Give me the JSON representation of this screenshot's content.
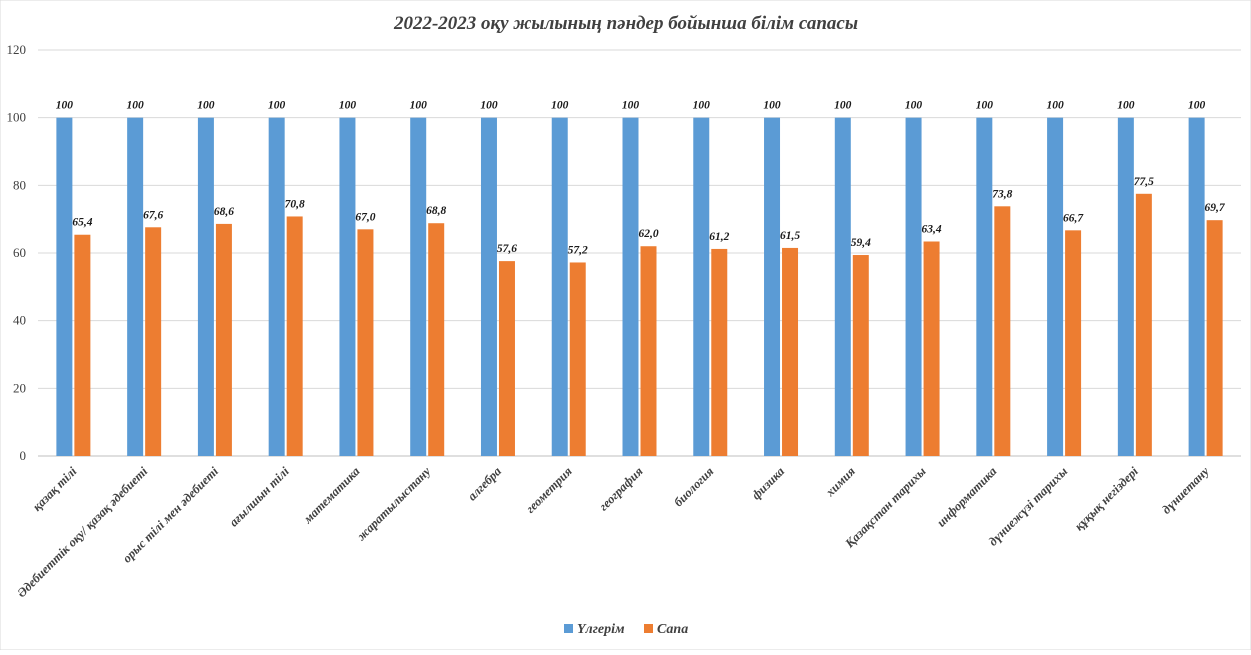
{
  "chart_data": {
    "type": "bar",
    "title": "2022-2023 оқу жылының пәндер бойынша білім сапасы",
    "categories": [
      "қазақ тілі",
      "Әдебиеттік оқу/ қазақ әдебиеті",
      "орыс тілі мен әдебиеті",
      "ағылшын тілі",
      "математика",
      "жаратылыстану",
      "алгебра",
      "геометрия",
      "география",
      "биология",
      "физика",
      "химия",
      "Қазақстан тарихы",
      "информатика",
      "дүниежүзі тарихы",
      "құқық негіздері",
      "дүниетану"
    ],
    "series": [
      {
        "name": "Үлгерім",
        "color": "#5b9bd5",
        "values": [
          100,
          100,
          100,
          100,
          100,
          100,
          100,
          100,
          100,
          100,
          100,
          100,
          100,
          100,
          100,
          100,
          100
        ],
        "labels": [
          "100",
          "100",
          "100",
          "100",
          "100",
          "100",
          "100",
          "100",
          "100",
          "100",
          "100",
          "100",
          "100",
          "100",
          "100",
          "100",
          "100"
        ]
      },
      {
        "name": "Сапа",
        "color": "#ed7d31",
        "values": [
          65.4,
          67.6,
          68.6,
          70.8,
          67.0,
          68.8,
          57.6,
          57.2,
          62.0,
          61.2,
          61.5,
          59.4,
          63.4,
          73.8,
          66.7,
          77.5,
          69.7
        ],
        "labels": [
          "65,4",
          "67,6",
          "68,6",
          "70,8",
          "67,0",
          "68,8",
          "57,6",
          "57,2",
          "62,0",
          "61,2",
          "61,5",
          "59,4",
          "63,4",
          "73,8",
          "66,7",
          "77,5",
          "69,7"
        ]
      }
    ],
    "ylim": [
      0,
      120
    ],
    "yticks": [
      0,
      20,
      40,
      60,
      80,
      100,
      120
    ],
    "grid": true,
    "legend": "bottom-center"
  }
}
